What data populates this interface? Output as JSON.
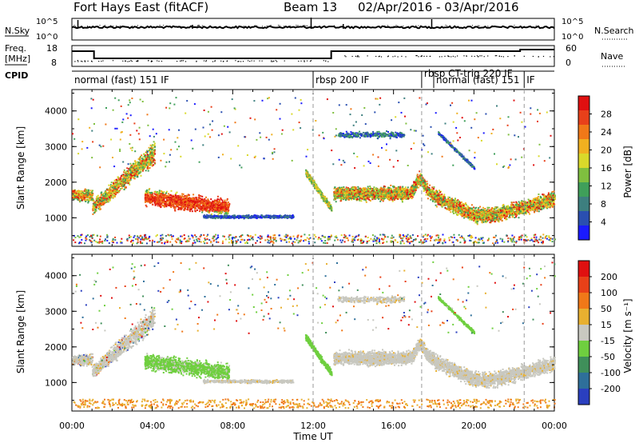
{
  "header": {
    "title": "Fort Hays East (fitACF)",
    "beam": "Beam 13",
    "dates": "02/Apr/2016 - 03/Apr/2016"
  },
  "side_labels": {
    "nsky": "N.Sky",
    "nsearch": "N.Search",
    "freq_line1": "Freq.",
    "freq_line2": "[MHz]",
    "nave": "Nave",
    "cpid": "CPID"
  },
  "noise_panel": {
    "left_ticks": [
      "10^5",
      "10^0"
    ],
    "right_ticks": [
      "10^5",
      "10^0"
    ]
  },
  "freq_panel": {
    "left_ticks": [
      "18",
      "8"
    ],
    "right_ticks": [
      "60",
      "0"
    ]
  },
  "cpid_modes": [
    {
      "label": "normal (fast) 151 IF",
      "start_h": 0.0
    },
    {
      "label": "rbsp 200 IF",
      "start_h": 12.0
    },
    {
      "label": "rbsp CT-trig 220 IF",
      "start_h": 17.4
    },
    {
      "label": "normal (fast) 151",
      "start_h": 18.0
    },
    {
      "label": "IF",
      "start_h": 22.5
    }
  ],
  "chart_data": [
    {
      "type": "heatmap",
      "name": "Power",
      "xlabel": "",
      "ylabel": "Slant Range [km]",
      "xlim_hours": [
        0,
        24
      ],
      "ylim": [
        200,
        4600
      ],
      "y_ticks": [
        1000,
        2000,
        3000,
        4000
      ],
      "colorbar_title": "Power [dB]",
      "colorbar_ticks": [
        28,
        24,
        20,
        16,
        12,
        8,
        4
      ],
      "colorbar_range": [
        0,
        32
      ],
      "colors": [
        "#1a1aff",
        "#2a4fb0",
        "#3d7f7f",
        "#3f9f5a",
        "#7fbf3f",
        "#d9d92a",
        "#f0b020",
        "#f07818",
        "#e8401a",
        "#e01010"
      ],
      "mode_change_lines_h": [
        12.0,
        17.4,
        22.5
      ]
    },
    {
      "type": "heatmap",
      "name": "Velocity",
      "xlabel": "Time UT",
      "ylabel": "Slant Range [km]",
      "xlim_hours": [
        0,
        24
      ],
      "ylim": [
        200,
        4600
      ],
      "y_ticks": [
        1000,
        2000,
        3000,
        4000
      ],
      "x_ticks": [
        "00:00",
        "04:00",
        "08:00",
        "12:00",
        "16:00",
        "20:00",
        "00:00"
      ],
      "colorbar_title": "Velocity [m s⁻¹]",
      "colorbar_ticks": [
        200,
        100,
        50,
        15,
        -15,
        -50,
        -100,
        -200
      ],
      "colors": [
        "#2a3fbf",
        "#2e6f9a",
        "#3f8f5a",
        "#6fcf3f",
        "#c8c8c0",
        "#e8b030",
        "#f07818",
        "#e84018",
        "#e01010"
      ],
      "mode_change_lines_h": [
        12.0,
        17.4,
        22.5
      ]
    }
  ]
}
